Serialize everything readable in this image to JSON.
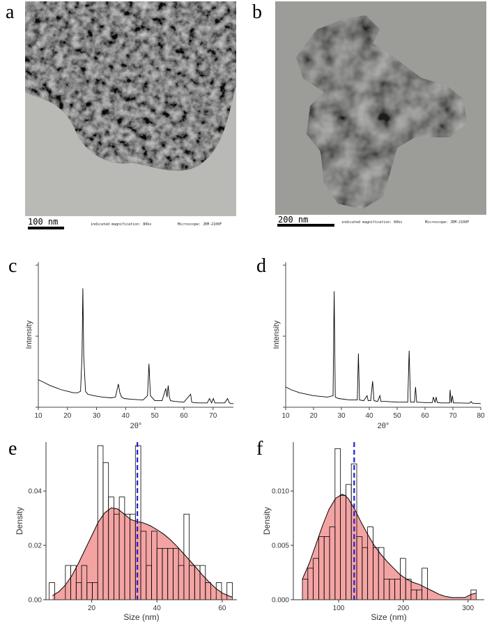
{
  "panels": {
    "a": {
      "letter": "a",
      "scale_label": "100 nm",
      "magnification": "indicated magnification: 80ks",
      "microscope": "Microscope: JEM-2100F"
    },
    "b": {
      "letter": "b",
      "scale_label": "200 nm",
      "magnification": "indicated magnification: 60ks",
      "microscope": "Microscope: JEM-2100F"
    },
    "c": {
      "letter": "c"
    },
    "d": {
      "letter": "d"
    },
    "e": {
      "letter": "e"
    },
    "f": {
      "letter": "f"
    }
  },
  "colors": {
    "xrd_line": "#000000",
    "density_fill": "#f4a3a3",
    "density_line": "#000000",
    "mean_line": "#1f1fd6",
    "hist_edge": "#000000"
  },
  "chart_data": [
    {
      "id": "c",
      "type": "line",
      "xlabel": "2θ°",
      "ylabel": "Intensity",
      "xlim": [
        10,
        77
      ],
      "ylim": [
        0,
        100
      ],
      "xticks": [
        10,
        20,
        30,
        40,
        50,
        60,
        70
      ],
      "yticks": [],
      "x": [
        10,
        12,
        14,
        16,
        18,
        20,
        22,
        23.5,
        24.5,
        25.0,
        25.3,
        25.6,
        26.2,
        27,
        29,
        32,
        35,
        36.5,
        37.5,
        38,
        38.6,
        39.5,
        42,
        46,
        47.5,
        48.0,
        48.5,
        50,
        52.5,
        53.8,
        54.2,
        54.6,
        55.0,
        55.4,
        57,
        60,
        62.3,
        62.7,
        63.2,
        65,
        68,
        68.8,
        69.5,
        70.1,
        70.6,
        72,
        74,
        75.0,
        75.6,
        76.3,
        77
      ],
      "y": [
        19,
        17,
        15,
        13.5,
        12,
        11,
        10,
        10,
        11,
        35,
        82,
        35,
        11,
        9,
        8,
        7,
        6.5,
        7,
        16,
        10,
        7,
        6,
        5.5,
        5,
        8,
        30,
        8,
        4.5,
        4.5,
        13,
        7,
        15,
        7,
        4.5,
        4,
        3.5,
        9,
        3.5,
        3.2,
        3,
        3,
        6,
        3,
        6,
        3,
        3,
        3,
        6,
        3,
        2.5,
        2.5
      ]
    },
    {
      "id": "d",
      "type": "line",
      "xlabel": "2θ°",
      "ylabel": "Intensity",
      "xlim": [
        10,
        80
      ],
      "ylim": [
        0,
        100
      ],
      "xticks": [
        10,
        20,
        30,
        40,
        50,
        60,
        70,
        80
      ],
      "yticks": [],
      "x": [
        10,
        12,
        15,
        20,
        25,
        27.0,
        27.4,
        27.8,
        29,
        33,
        35.7,
        36.1,
        36.5,
        38,
        39.2,
        39.6,
        40.5,
        41.2,
        41.7,
        43,
        43.8,
        44.2,
        46,
        50,
        53.8,
        54.3,
        54.8,
        56.2,
        56.6,
        57.0,
        60,
        62.6,
        63.0,
        63.6,
        64.0,
        64.4,
        66,
        68.8,
        69.0,
        69.4,
        69.8,
        70.2,
        72,
        76,
        76.5,
        77,
        80
      ],
      "y": [
        14,
        12,
        10,
        8,
        7,
        8,
        80,
        7,
        6,
        5,
        5,
        37,
        5,
        4.5,
        8,
        4.5,
        4.5,
        18,
        4.5,
        4,
        8,
        4,
        4,
        3.5,
        3.5,
        39,
        3.5,
        3.5,
        14,
        3.5,
        3.2,
        3.2,
        7,
        3.2,
        7,
        3.2,
        3,
        3,
        12,
        3,
        8,
        3,
        3,
        2.8,
        4,
        2.8,
        2.5
      ]
    },
    {
      "id": "e",
      "type": "bar",
      "xlabel": "Size (nm)",
      "ylabel": "Density",
      "xlim": [
        6,
        64.5
      ],
      "ylim": [
        0,
        0.058
      ],
      "xticks": [
        20,
        40,
        60
      ],
      "yticks": [
        0.0,
        0.02,
        0.04
      ],
      "ytick_labels": [
        "0.00",
        "0.02",
        "0.04"
      ],
      "bin_edges": [
        7.0,
        8.65,
        10.3,
        11.95,
        13.6,
        15.25,
        16.9,
        18.55,
        20.2,
        21.85,
        23.5,
        25.15,
        26.8,
        28.45,
        30.1,
        31.75,
        33.4,
        35.05,
        36.7,
        38.35,
        40.0,
        41.65,
        43.3,
        44.95,
        46.6,
        48.25,
        49.9,
        51.55,
        53.2,
        54.85,
        56.5,
        58.15,
        59.8,
        61.45,
        63.1
      ],
      "values": [
        0.0063,
        0.0,
        0.0,
        0.0126,
        0.0126,
        0.0063,
        0.0126,
        0.0063,
        0.0063,
        0.0567,
        0.0504,
        0.0378,
        0.0315,
        0.0378,
        0.0315,
        0.0315,
        0.0567,
        0.0252,
        0.0126,
        0.0252,
        0.0189,
        0.0189,
        0.0189,
        0.0189,
        0.0126,
        0.0315,
        0.0126,
        0.0126,
        0.0126,
        0.0063,
        0.0,
        0.0063,
        0.0,
        0.0063
      ],
      "density_x": [
        8,
        10,
        12,
        14,
        16,
        18,
        20,
        22,
        24,
        26,
        28,
        30,
        32,
        34,
        36,
        38,
        40,
        42,
        44,
        46,
        48,
        50,
        52,
        54,
        56,
        58,
        60,
        62,
        63
      ],
      "density_y": [
        0.0015,
        0.003,
        0.0055,
        0.009,
        0.0135,
        0.0185,
        0.0235,
        0.0285,
        0.032,
        0.0338,
        0.0334,
        0.0315,
        0.0295,
        0.0288,
        0.0282,
        0.0272,
        0.0258,
        0.0242,
        0.0222,
        0.0198,
        0.0172,
        0.0145,
        0.0118,
        0.009,
        0.0065,
        0.0042,
        0.0025,
        0.0014,
        0.001
      ],
      "mean": 34.0
    },
    {
      "id": "f",
      "type": "bar",
      "xlabel": "Size (nm)",
      "ylabel": "Density",
      "xlim": [
        30,
        325
      ],
      "ylim": [
        0,
        0.0145
      ],
      "xticks": [
        100,
        200,
        300
      ],
      "yticks": [
        0.0,
        0.005,
        0.01
      ],
      "ytick_labels": [
        "0.000",
        "0.005",
        "0.010"
      ],
      "bin_edges": [
        44,
        52.4,
        60.8,
        69.2,
        77.6,
        86.0,
        94.4,
        102.8,
        111.2,
        119.6,
        128.0,
        136.4,
        144.8,
        153.2,
        161.6,
        170.0,
        178.4,
        186.8,
        195.2,
        203.6,
        212.0,
        220.4,
        228.8,
        237.2,
        245.6,
        254.0,
        262.4,
        270.8,
        279.2,
        287.6,
        296.0,
        304.4,
        312.8
      ],
      "values": [
        0.0019,
        0.0029,
        0.0038,
        0.0058,
        0.0058,
        0.0067,
        0.0139,
        0.0096,
        0.0106,
        0.0125,
        0.0058,
        0.0048,
        0.0067,
        0.0048,
        0.0048,
        0.0019,
        0.0019,
        0.0019,
        0.0038,
        0.0019,
        0.0009,
        0.0009,
        0.0029,
        0.0,
        0.0,
        0.0,
        0.0,
        0.0,
        0.0,
        0.0,
        0.0,
        0.0009
      ],
      "density_x": [
        44,
        55,
        65,
        75,
        85,
        95,
        105,
        110,
        115,
        125,
        135,
        145,
        155,
        165,
        175,
        185,
        195,
        205,
        215,
        225,
        235,
        245,
        255,
        265,
        275,
        285,
        295,
        305,
        312
      ],
      "density_y": [
        0.0019,
        0.0034,
        0.0051,
        0.0068,
        0.0083,
        0.0093,
        0.0097,
        0.0096,
        0.0093,
        0.0083,
        0.0071,
        0.006,
        0.005,
        0.0042,
        0.0035,
        0.0029,
        0.0023,
        0.0019,
        0.0016,
        0.0014,
        0.0011,
        0.0008,
        0.0005,
        0.0003,
        0.0002,
        0.0002,
        0.0002,
        0.0005,
        0.0006
      ],
      "mean": 124.0
    }
  ]
}
